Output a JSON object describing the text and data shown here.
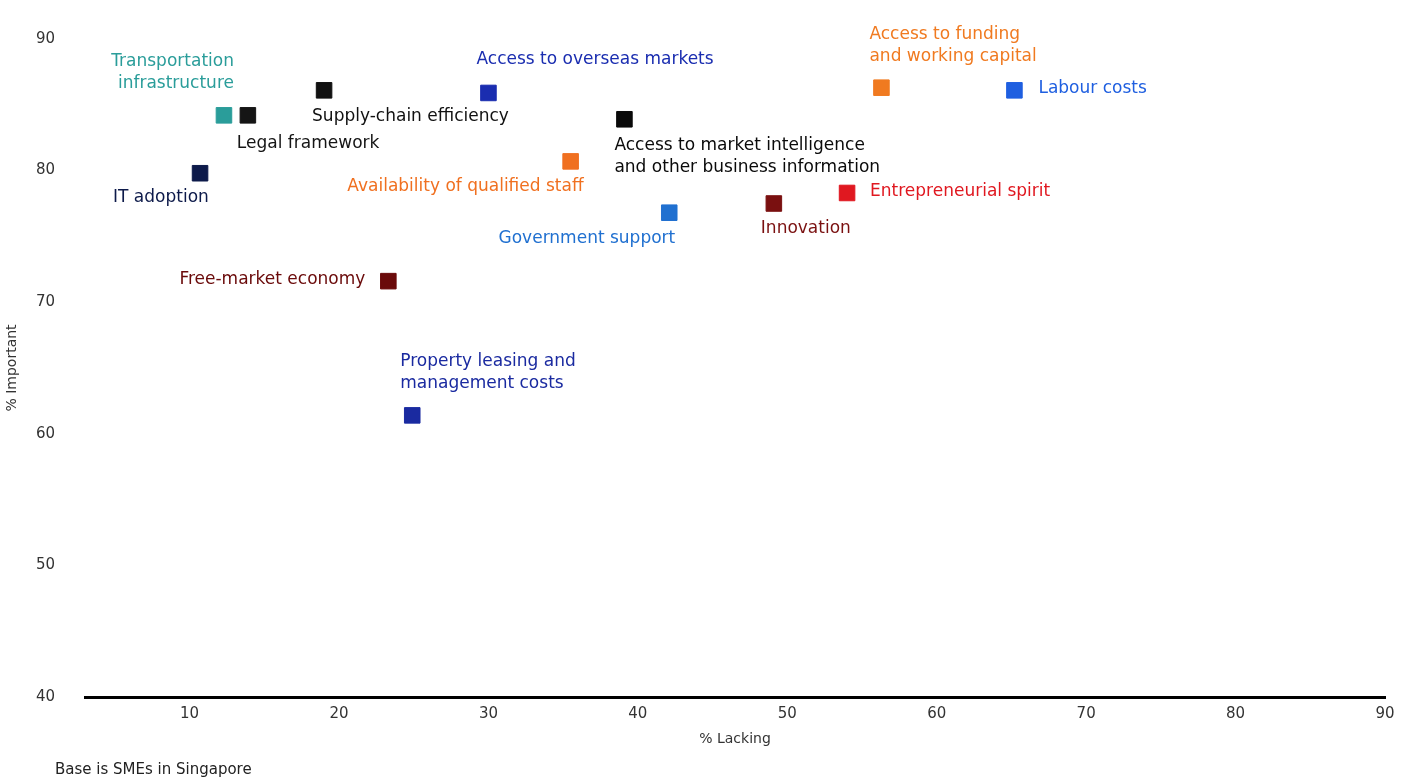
{
  "chart_data": {
    "type": "scatter",
    "xlabel": "% Lacking",
    "ylabel": "% Important",
    "xlim": [
      3,
      90
    ],
    "ylim": [
      40,
      90
    ],
    "xticks": [
      10,
      20,
      30,
      40,
      50,
      60,
      70,
      80,
      90
    ],
    "yticks": [
      40,
      50,
      60,
      70,
      80,
      90
    ],
    "grid": false,
    "legend": false,
    "marker": "square",
    "annotations": [
      "Base is SMEs in Singapore"
    ],
    "series": [
      {
        "name": "Transportation\ninfrastructure",
        "color": "#2a9d9a",
        "x": [
          12.3
        ],
        "values": [
          84.2
        ]
      },
      {
        "name": "Legal framework",
        "color": "#151515",
        "x": [
          13.9
        ],
        "values": [
          84.2
        ]
      },
      {
        "name": "IT adoption",
        "color": "#0d1a4a",
        "x": [
          10.7
        ],
        "values": [
          79.8
        ]
      },
      {
        "name": "Supply-chain efficiency",
        "color": "#111111",
        "x": [
          19
        ],
        "values": [
          86.1
        ]
      },
      {
        "name": "Access to overseas markets",
        "color": "#1a2db0",
        "x": [
          30
        ],
        "values": [
          85.9
        ]
      },
      {
        "name": "Access to market intelligence\nand other business information",
        "color": "#0a0a0a",
        "x": [
          39.1
        ],
        "values": [
          83.9
        ]
      },
      {
        "name": "Availability of qualified staff",
        "color": "#f07020",
        "x": [
          35.5
        ],
        "values": [
          80.7
        ]
      },
      {
        "name": "Access to funding\nand working capital",
        "color": "#f07a20",
        "x": [
          56.3
        ],
        "values": [
          86.3
        ]
      },
      {
        "name": "Labour costs",
        "color": "#1f5fe0",
        "x": [
          65.2
        ],
        "values": [
          86.1
        ]
      },
      {
        "name": "Government support",
        "color": "#2070d0",
        "x": [
          42.1
        ],
        "values": [
          76.8
        ]
      },
      {
        "name": "Innovation",
        "color": "#7a1010",
        "x": [
          49.1
        ],
        "values": [
          77.5
        ]
      },
      {
        "name": "Entrepreneurial spirit",
        "color": "#e01820",
        "x": [
          54
        ],
        "values": [
          78.3
        ]
      },
      {
        "name": "Free-market economy",
        "color": "#6a0a0a",
        "x": [
          23.3
        ],
        "values": [
          71.6
        ]
      },
      {
        "name": "Property leasing and\nmanagement costs",
        "color": "#1a2aa0",
        "x": [
          24.9
        ],
        "values": [
          61.4
        ]
      }
    ]
  }
}
